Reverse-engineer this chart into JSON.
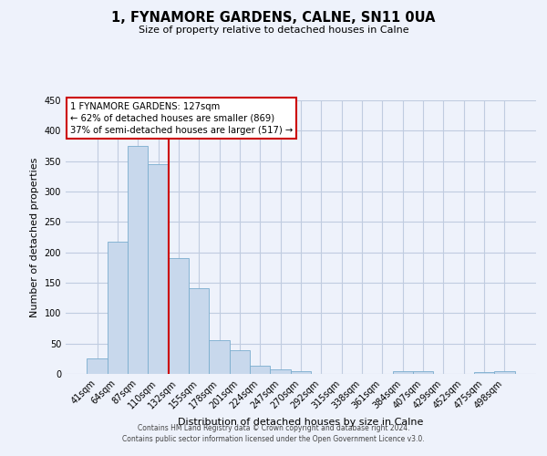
{
  "title": "1, FYNAMORE GARDENS, CALNE, SN11 0UA",
  "subtitle": "Size of property relative to detached houses in Calne",
  "xlabel": "Distribution of detached houses by size in Calne",
  "ylabel": "Number of detached properties",
  "bar_labels": [
    "41sqm",
    "64sqm",
    "87sqm",
    "110sqm",
    "132sqm",
    "155sqm",
    "178sqm",
    "201sqm",
    "224sqm",
    "247sqm",
    "270sqm",
    "292sqm",
    "315sqm",
    "338sqm",
    "361sqm",
    "384sqm",
    "407sqm",
    "429sqm",
    "452sqm",
    "475sqm",
    "498sqm"
  ],
  "bar_values": [
    25,
    218,
    375,
    345,
    190,
    141,
    56,
    39,
    13,
    7,
    5,
    0,
    0,
    0,
    0,
    4,
    5,
    0,
    0,
    3,
    4
  ],
  "bar_color": "#c8d8ec",
  "bar_edge_color": "#7aadce",
  "vline_color": "#cc0000",
  "vline_position": 3.5,
  "ylim": [
    0,
    450
  ],
  "yticks": [
    0,
    50,
    100,
    150,
    200,
    250,
    300,
    350,
    400,
    450
  ],
  "annotation_title": "1 FYNAMORE GARDENS: 127sqm",
  "annotation_line1": "← 62% of detached houses are smaller (869)",
  "annotation_line2": "37% of semi-detached houses are larger (517) →",
  "annotation_box_color": "#ffffff",
  "annotation_box_edge": "#cc0000",
  "background_color": "#eef2fb",
  "grid_color": "#c0cce0",
  "footer1": "Contains HM Land Registry data © Crown copyright and database right 2024.",
  "footer2": "Contains public sector information licensed under the Open Government Licence v3.0."
}
